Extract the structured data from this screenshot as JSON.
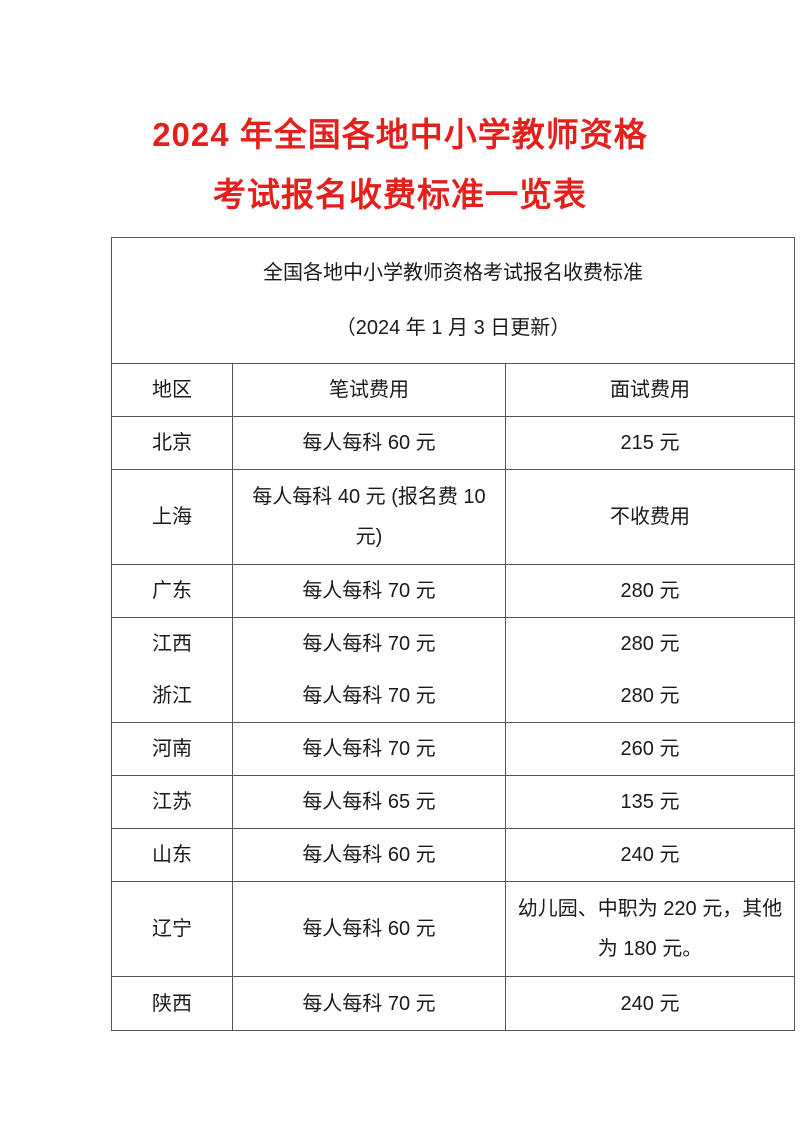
{
  "title": {
    "line1": "2024 年全国各地中小学教师资格",
    "line2": "考试报名收费标准一览表",
    "color": "#e3201c"
  },
  "table": {
    "caption": "全国各地中小学教师资格考试报名收费标准",
    "updated": "（2024 年 1 月 3 日更新）",
    "headers": [
      "地区",
      "笔试费用",
      "面试费用"
    ],
    "rows": [
      [
        "北京",
        "每人每科 60 元",
        "215 元"
      ],
      [
        "上海",
        "每人每科 40 元 (报名费 10 元)",
        "不收费用"
      ],
      [
        "广东",
        "每人每科 70 元",
        "280 元"
      ],
      [
        "江西",
        "每人每科 70 元",
        "280 元"
      ],
      [
        "浙江",
        "每人每科 70 元",
        "280 元"
      ],
      [
        "河南",
        "每人每科 70 元",
        "260 元"
      ],
      [
        "江苏",
        "每人每科 65 元",
        "135 元"
      ],
      [
        "山东",
        "每人每科 60 元",
        "240 元"
      ],
      [
        "辽宁",
        "每人每科 60 元",
        "幼儿园、中职为 220 元，其他为 180 元。"
      ],
      [
        "陕西",
        "每人每科 70 元",
        "240 元"
      ]
    ]
  }
}
